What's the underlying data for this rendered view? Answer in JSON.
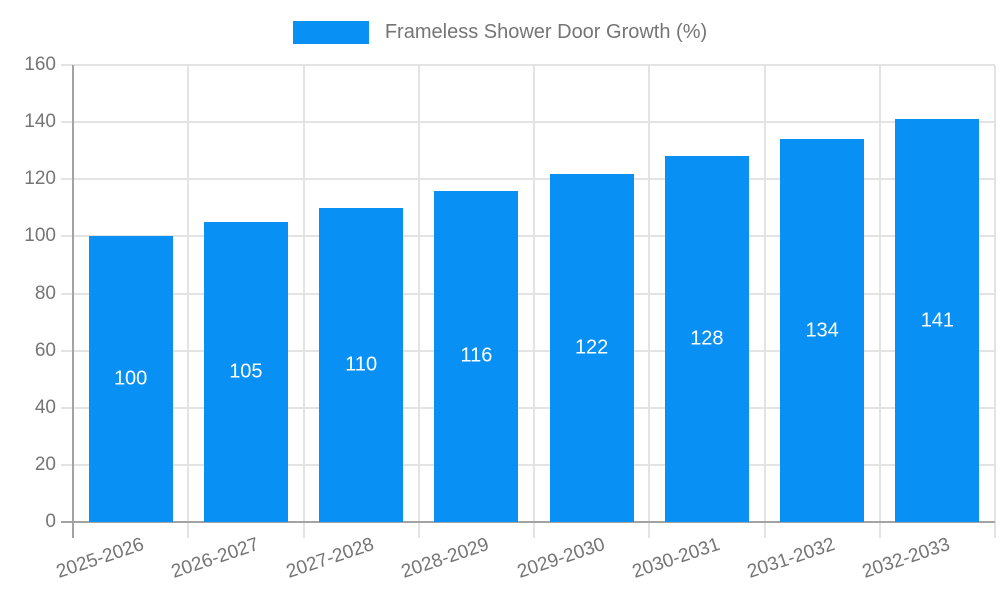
{
  "chart_data": {
    "type": "bar",
    "title": "Frameless Shower Door Growth (%)",
    "categories": [
      "2025-2026",
      "2026-2027",
      "2027-2028",
      "2028-2029",
      "2029-2030",
      "2030-2031",
      "2031-2032",
      "2032-2033"
    ],
    "series": [
      {
        "name": "Frameless Shower Door Growth (%)",
        "values": [
          100,
          105,
          110,
          116,
          122,
          128,
          134,
          141
        ]
      }
    ],
    "bar_value_labels": [
      "100",
      "105",
      "110",
      "116",
      "122",
      "128",
      "134",
      "141"
    ],
    "xlabel": "",
    "ylabel": "",
    "ylim": [
      0,
      160
    ],
    "ytick_step": 20,
    "ytick_labels": [
      "0",
      "20",
      "40",
      "60",
      "80",
      "100",
      "120",
      "140",
      "160"
    ],
    "grid": true,
    "legend_position": "top"
  },
  "colors": {
    "bar": "#0990f5",
    "axis_text": "#757575",
    "bar_label_text": "#ffffff",
    "gridline": "#e3e3e3",
    "axis_line": "#a3a3a3",
    "background": "#ffffff"
  }
}
